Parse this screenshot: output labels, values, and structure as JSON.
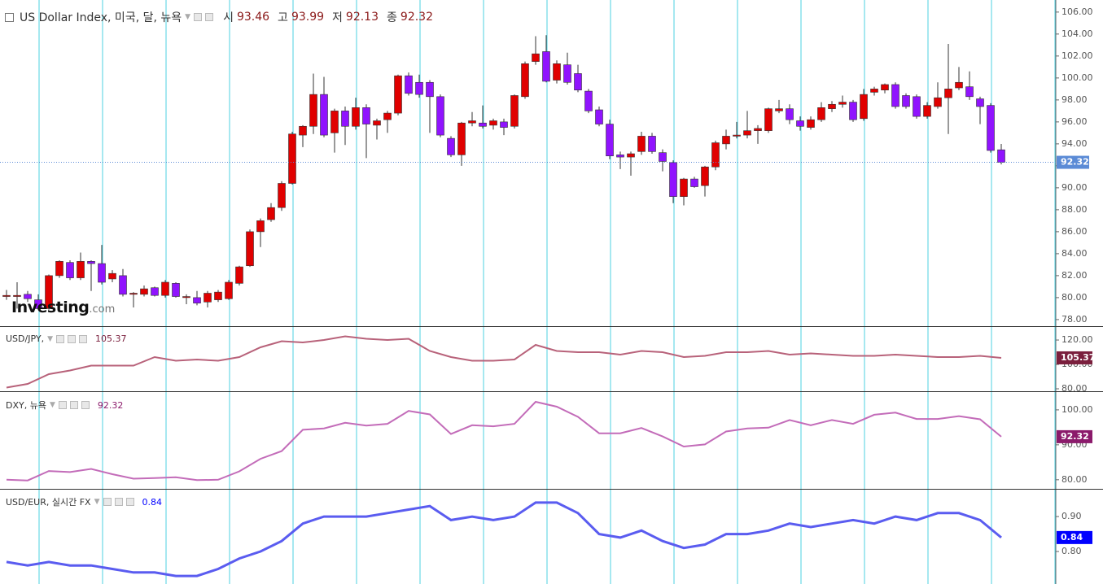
{
  "watermark": {
    "brand": "Investing",
    "suffix": ".com"
  },
  "chart_data": [
    {
      "type": "candlestick",
      "title": "US Dollar Index, 미국, 달, 뉴욕",
      "ohlc_labels": [
        "시",
        "고",
        "저",
        "종"
      ],
      "up_color": "#e00000",
      "down_color": "#9013fe",
      "wick_color": "#333333",
      "badge_color": "#5b8bd6",
      "ylim": [
        77.4,
        107.1
      ],
      "yticks": [
        {
          "value": 78,
          "label": "78.00"
        },
        {
          "value": 80,
          "label": "80.00"
        },
        {
          "value": 82,
          "label": "82.00"
        },
        {
          "value": 84,
          "label": "84.00"
        },
        {
          "value": 86,
          "label": "86.00"
        },
        {
          "value": 88,
          "label": "88.00"
        },
        {
          "value": 90,
          "label": "90.00"
        },
        {
          "value": 92,
          "label": "92.00"
        },
        {
          "value": 94,
          "label": "94.00"
        },
        {
          "value": 96,
          "label": "96.00"
        },
        {
          "value": 98,
          "label": "98.00"
        },
        {
          "value": 100,
          "label": "100.00"
        },
        {
          "value": 102,
          "label": "102.00"
        },
        {
          "value": 104,
          "label": "104.00"
        },
        {
          "value": 106,
          "label": "106.00"
        }
      ],
      "open": [
        80.1,
        80.1,
        80.3,
        79.8,
        79.0,
        82.0,
        83.2,
        81.8,
        83.3,
        83.1,
        81.7,
        82.0,
        80.3,
        80.3,
        80.9,
        80.2,
        81.3,
        80.0,
        80.0,
        79.6,
        79.8,
        79.9,
        81.3,
        82.9,
        86.0,
        87.1,
        88.2,
        90.4,
        94.8,
        95.6,
        98.5,
        95.0,
        97.0,
        95.6,
        97.3,
        95.7,
        96.2,
        96.8,
        100.2,
        99.6,
        99.6,
        98.3,
        94.5,
        93.0,
        95.9,
        95.9,
        95.7,
        96.0,
        95.6,
        98.3,
        101.5,
        102.4,
        99.8,
        101.2,
        100.4,
        98.8,
        97.1,
        95.8,
        93.0,
        92.8,
        93.3,
        94.7,
        93.2,
        92.3,
        89.2,
        90.8,
        90.2,
        91.9,
        94.0,
        94.7,
        94.8,
        95.2,
        95.2,
        97.0,
        97.2,
        96.1,
        95.5,
        96.2,
        97.2,
        97.6,
        97.8,
        96.3,
        98.7,
        98.9,
        99.4,
        98.4,
        98.3,
        96.5,
        97.4,
        98.2,
        99.1,
        99.2,
        98.1,
        97.5,
        93.46
      ],
      "high": [
        80.7,
        81.4,
        80.6,
        80.3,
        82.1,
        83.4,
        83.4,
        84.1,
        83.4,
        84.8,
        82.5,
        82.6,
        80.5,
        81.1,
        81.0,
        81.6,
        81.4,
        80.3,
        80.6,
        80.6,
        80.7,
        81.6,
        82.9,
        86.2,
        87.2,
        88.6,
        90.6,
        95.1,
        95.7,
        100.4,
        100.1,
        97.2,
        97.4,
        98.2,
        97.6,
        96.3,
        97.0,
        100.3,
        100.5,
        100.3,
        99.8,
        98.5,
        94.7,
        96.0,
        96.9,
        97.5,
        96.3,
        96.3,
        98.5,
        101.5,
        103.8,
        103.9,
        101.6,
        102.3,
        101.2,
        99.0,
        97.4,
        96.2,
        93.3,
        93.3,
        95.1,
        95.0,
        93.5,
        92.5,
        90.9,
        91.0,
        92.0,
        94.3,
        95.3,
        96.0,
        97.0,
        95.7,
        97.3,
        98.0,
        97.6,
        96.5,
        96.5,
        97.8,
        97.9,
        98.4,
        98.0,
        99.0,
        99.2,
        99.5,
        99.6,
        98.6,
        98.5,
        97.8,
        99.6,
        103.1,
        101.0,
        100.6,
        98.3,
        97.7,
        93.99
      ],
      "low": [
        79.8,
        79.0,
        79.6,
        78.9,
        78.9,
        81.8,
        81.6,
        81.6,
        80.6,
        81.2,
        81.4,
        80.1,
        79.1,
        80.1,
        80.1,
        80.0,
        80.0,
        79.4,
        79.3,
        79.1,
        79.6,
        79.8,
        81.1,
        82.8,
        84.6,
        86.9,
        87.9,
        90.3,
        93.7,
        94.9,
        94.6,
        93.2,
        93.9,
        95.3,
        92.7,
        94.4,
        95.0,
        96.6,
        98.4,
        98.2,
        95.0,
        94.6,
        92.8,
        92.0,
        95.6,
        95.4,
        95.3,
        94.8,
        95.4,
        98.1,
        101.2,
        99.6,
        99.5,
        99.4,
        98.7,
        96.8,
        95.6,
        92.6,
        91.7,
        91.1,
        93.0,
        93.1,
        91.5,
        88.6,
        88.4,
        90.0,
        89.2,
        91.6,
        93.5,
        94.5,
        94.5,
        94.0,
        95.0,
        96.8,
        95.8,
        95.2,
        95.3,
        96.0,
        96.9,
        97.3,
        96.0,
        96.1,
        98.4,
        98.6,
        97.2,
        97.2,
        96.3,
        96.3,
        97.2,
        94.9,
        98.9,
        98.0,
        95.8,
        93.2,
        92.13
      ],
      "close": [
        80.2,
        80.2,
        79.9,
        79.0,
        82.0,
        83.3,
        81.8,
        83.3,
        83.1,
        81.4,
        82.2,
        80.3,
        80.4,
        80.8,
        80.2,
        81.4,
        80.1,
        80.1,
        79.5,
        80.4,
        80.5,
        81.4,
        82.8,
        86.0,
        87.0,
        88.2,
        90.4,
        94.9,
        95.6,
        98.5,
        94.8,
        97.0,
        95.6,
        97.3,
        95.8,
        96.1,
        96.8,
        100.2,
        98.6,
        98.5,
        98.3,
        94.8,
        93.0,
        95.9,
        96.1,
        95.6,
        96.1,
        95.5,
        98.4,
        101.3,
        102.2,
        99.7,
        101.3,
        99.6,
        98.9,
        97.0,
        95.8,
        92.9,
        92.8,
        93.1,
        94.7,
        93.3,
        92.4,
        89.2,
        90.8,
        90.1,
        91.9,
        94.1,
        94.7,
        94.8,
        95.2,
        95.4,
        97.2,
        97.2,
        96.2,
        95.6,
        96.2,
        97.3,
        97.6,
        97.8,
        96.2,
        98.5,
        99.0,
        99.4,
        97.4,
        97.4,
        96.5,
        97.5,
        98.2,
        99.0,
        99.6,
        98.3,
        97.4,
        93.4,
        92.32
      ]
    },
    {
      "type": "line",
      "title": "USD/JPY,",
      "color": "#b8627a",
      "badge_color": "#7a1f3d",
      "ylim": [
        78,
        130.7
      ],
      "yticks": [
        {
          "value": 80,
          "label": "80.00"
        },
        {
          "value": 100,
          "label": "100.00"
        },
        {
          "value": 120,
          "label": "120.00"
        }
      ],
      "values": [
        81,
        84,
        92,
        95,
        99,
        99,
        99,
        106,
        103,
        104,
        103,
        106,
        114,
        119,
        118,
        120,
        123,
        121,
        120,
        121,
        111,
        106,
        103,
        103,
        104,
        116,
        111,
        110,
        110,
        108,
        111,
        110,
        106,
        107,
        110,
        110,
        111,
        108,
        109,
        108,
        107,
        107,
        108,
        107,
        106,
        106,
        107,
        105.37
      ]
    },
    {
      "type": "line",
      "title": "DXY, 뉴욕",
      "color": "#c36cb9",
      "badge_color": "#8b1a6b",
      "ylim": [
        77.4,
        105.1
      ],
      "yticks": [
        {
          "value": 80,
          "label": "80.00"
        },
        {
          "value": 90,
          "label": "90.00"
        },
        {
          "value": 100,
          "label": "100.00"
        }
      ],
      "values": [
        80.0,
        79.8,
        82.5,
        82.2,
        83.1,
        81.6,
        80.3,
        80.5,
        80.7,
        79.9,
        80.0,
        82.4,
        86.0,
        88.2,
        94.3,
        94.7,
        96.3,
        95.5,
        96.0,
        99.7,
        98.7,
        93.1,
        95.6,
        95.3,
        96.0,
        102.3,
        100.9,
        98.0,
        93.3,
        93.3,
        94.8,
        92.4,
        89.5,
        90.1,
        93.8,
        94.7,
        94.9,
        97.1,
        95.6,
        97.1,
        96.0,
        98.6,
        99.2,
        97.4,
        97.4,
        98.2,
        97.3,
        92.32
      ]
    },
    {
      "type": "line",
      "title": "USD/EUR, 실시간 FX",
      "color": "#5a5cf0",
      "badge_color": "#0000ff",
      "ylim": [
        0.707,
        0.977
      ],
      "yticks": [
        {
          "value": 0.8,
          "label": "0.80"
        },
        {
          "value": 0.9,
          "label": "0.90"
        }
      ],
      "values": [
        0.77,
        0.76,
        0.77,
        0.76,
        0.76,
        0.75,
        0.74,
        0.74,
        0.73,
        0.73,
        0.75,
        0.78,
        0.8,
        0.83,
        0.88,
        0.9,
        0.9,
        0.9,
        0.91,
        0.92,
        0.93,
        0.89,
        0.9,
        0.89,
        0.9,
        0.94,
        0.94,
        0.91,
        0.85,
        0.84,
        0.86,
        0.83,
        0.81,
        0.82,
        0.85,
        0.85,
        0.86,
        0.88,
        0.87,
        0.88,
        0.89,
        0.88,
        0.9,
        0.89,
        0.91,
        0.91,
        0.89,
        0.84
      ]
    }
  ]
}
